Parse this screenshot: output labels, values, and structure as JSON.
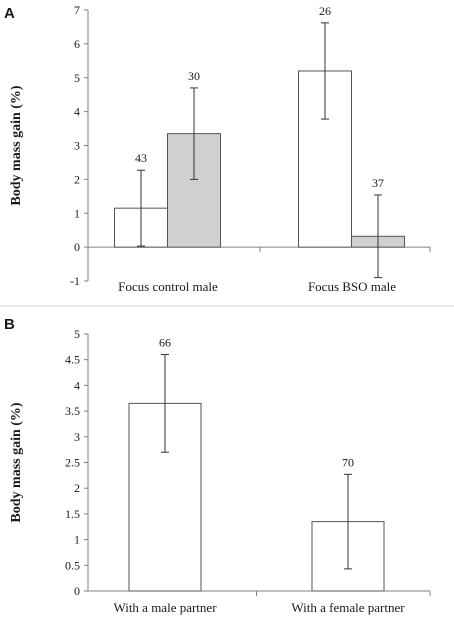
{
  "colors": {
    "bar_white": "#ffffff",
    "bar_grey": "#d0d0d0",
    "axis": "#808080",
    "background": "#ffffff"
  },
  "chart_data": [
    {
      "panel": "A",
      "type": "bar",
      "categories": [
        "Focus control male",
        "Focus BSO male"
      ],
      "series": [
        {
          "color": "#ffffff",
          "values": [
            1.15,
            5.2
          ],
          "error": [
            1.12,
            1.42
          ],
          "n": [
            "43",
            "26"
          ]
        },
        {
          "color": "#d0d0d0",
          "values": [
            3.35,
            0.32
          ],
          "error": [
            1.35,
            1.22
          ],
          "n": [
            "30",
            "37"
          ]
        }
      ],
      "ylabel": "Body mass gain (%)",
      "ylim": [
        -1,
        7
      ],
      "yticks": [
        "-1",
        "0",
        "1",
        "2",
        "3",
        "4",
        "5",
        "6",
        "7"
      ],
      "grid": false
    },
    {
      "panel": "B",
      "type": "bar",
      "categories": [
        "With a male partner",
        "With a female partner"
      ],
      "series": [
        {
          "color": "#ffffff",
          "values": [
            3.65,
            1.35
          ],
          "error": [
            0.95,
            0.92
          ],
          "n": [
            "66",
            "70"
          ]
        }
      ],
      "ylabel": "Body mass gain (%)",
      "ylim": [
        0,
        5
      ],
      "yticks": [
        "0",
        "0.5",
        "1",
        "1.5",
        "2",
        "2.5",
        "3",
        "3.5",
        "4",
        "4.5",
        "5"
      ],
      "grid": false
    }
  ]
}
